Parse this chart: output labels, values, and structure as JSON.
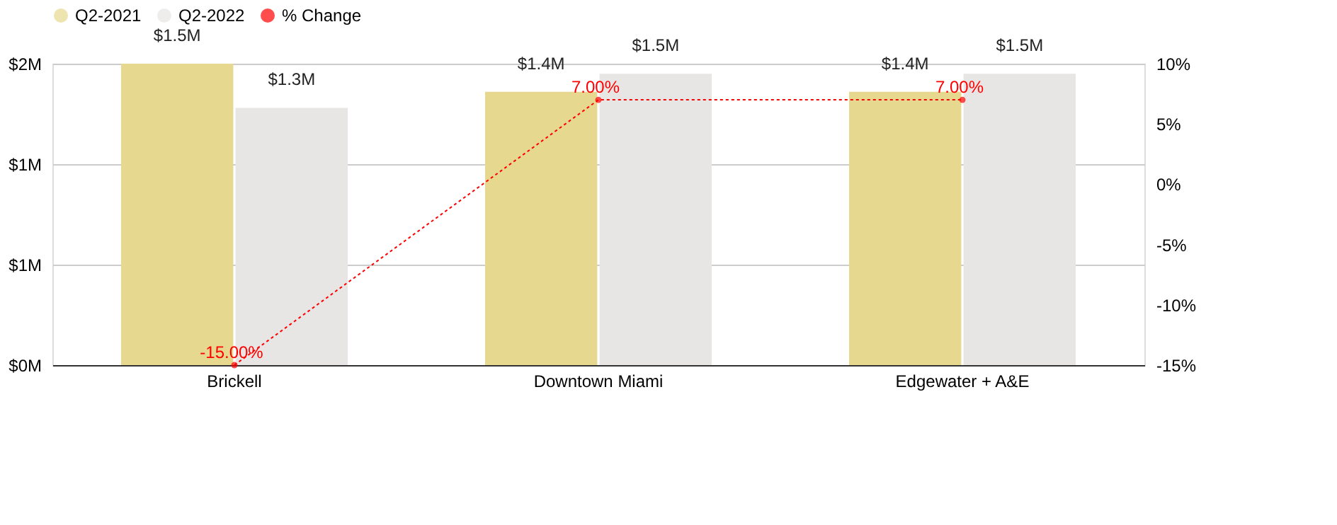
{
  "chart_data": {
    "type": "bar",
    "categories": [
      "Brickell",
      "Downtown Miami",
      "Edgewater + A&E"
    ],
    "series": [
      {
        "name": "Q2-2021",
        "color": "#e6d88e",
        "values": [
          1.5,
          1.36,
          1.36
        ],
        "value_labels": [
          "$1.5M",
          "$1.4M",
          "$1.4M"
        ]
      },
      {
        "name": "Q2-2022",
        "color": "#e8e6e4",
        "values": [
          1.28,
          1.45,
          1.45
        ],
        "value_labels": [
          "$1.3M",
          "$1.5M",
          "$1.5M"
        ]
      },
      {
        "name": "% Change",
        "type": "line",
        "axis": "y2",
        "color": "#ff0000",
        "values": [
          -15,
          7,
          7
        ],
        "value_labels": [
          "-15.00%",
          "7.00%",
          "7.00%"
        ],
        "marker": "circle",
        "line_style": "dotted"
      }
    ],
    "ylim": [
      0,
      1.5
    ],
    "yticks": [
      {
        "value": 0,
        "label": "$0M"
      },
      {
        "value": 0.5,
        "label": "$1M"
      },
      {
        "value": 1.0,
        "label": "$1M"
      },
      {
        "value": 1.5,
        "label": "$2M"
      }
    ],
    "y2lim": [
      -15,
      10
    ],
    "y2ticks": [
      {
        "value": -15,
        "label": "-15%"
      },
      {
        "value": -10,
        "label": "-10%"
      },
      {
        "value": -5,
        "label": "-5%"
      },
      {
        "value": 0,
        "label": "0%"
      },
      {
        "value": 5,
        "label": "5%"
      },
      {
        "value": 10,
        "label": "10%"
      }
    ],
    "grid": "y",
    "legend": "top"
  }
}
